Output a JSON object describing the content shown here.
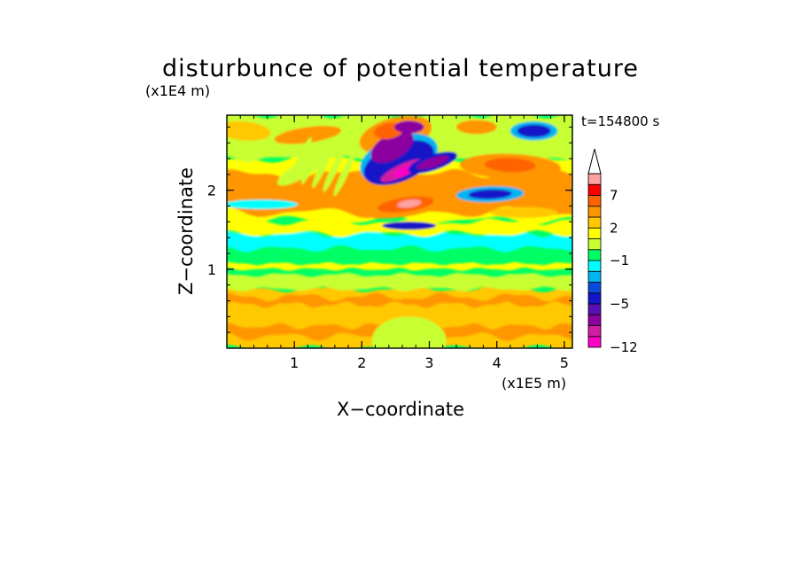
{
  "chart_data": {
    "type": "heatmap",
    "title": "disturbunce of potential temperature",
    "xlabel": "X−coordinate",
    "ylabel": "Z−coordinate",
    "x_unit": "(x1E5 m)",
    "y_unit": "(x1E4 m)",
    "time_label": "t=154800 s",
    "xlim": [
      0,
      5.12
    ],
    "ylim": [
      0,
      2.95
    ],
    "x_ticks": [
      1,
      2,
      3,
      4,
      5
    ],
    "y_ticks": [
      1,
      2
    ],
    "x_tick_labels": [
      "1",
      "2",
      "3",
      "4",
      "5"
    ],
    "y_tick_labels": [
      "1",
      "2"
    ],
    "colorbar": {
      "levels": [
        -12,
        -10,
        -8,
        -6,
        -5,
        -4,
        -3,
        -2,
        -1,
        0,
        1,
        2,
        3,
        5,
        7,
        9,
        11
      ],
      "colors": [
        "#ff00c8",
        "#d21ea0",
        "#8c00a0",
        "#5a0fb4",
        "#1414c8",
        "#0a4bdc",
        "#00b4f0",
        "#00ffff",
        "#00ff64",
        "#c8ff32",
        "#ffff00",
        "#ffc800",
        "#ff9600",
        "#ff6400",
        "#ff0000",
        "#ffa0a0"
      ],
      "extend": "max",
      "labeled_values": [
        "7",
        "2",
        "−1",
        "−5",
        "−12"
      ]
    },
    "features": [
      {
        "x": 2.65,
        "z": 1.8,
        "value": 10
      },
      {
        "x": 2.45,
        "z": 2.75,
        "value": 6
      },
      {
        "x": 4.2,
        "z": 2.3,
        "value": 6
      },
      {
        "x": 0.3,
        "z": 2.1,
        "value": 4
      },
      {
        "x": 0.5,
        "z": 0.45,
        "value": 3
      },
      {
        "x": 4.5,
        "z": 0.45,
        "value": 3
      },
      {
        "x": 2.6,
        "z": 2.25,
        "value": -12
      },
      {
        "x": 2.35,
        "z": 2.55,
        "value": -9
      },
      {
        "x": 3.0,
        "z": 2.3,
        "value": -7
      },
      {
        "x": 3.9,
        "z": 1.95,
        "value": -6
      },
      {
        "x": 4.55,
        "z": 2.75,
        "value": -6
      },
      {
        "x": 2.7,
        "z": 1.55,
        "value": -5
      },
      {
        "x": 3.0,
        "z": 1.45,
        "value": -1.5
      },
      {
        "x": 0.5,
        "z": 1.4,
        "value": -1.5
      }
    ]
  }
}
